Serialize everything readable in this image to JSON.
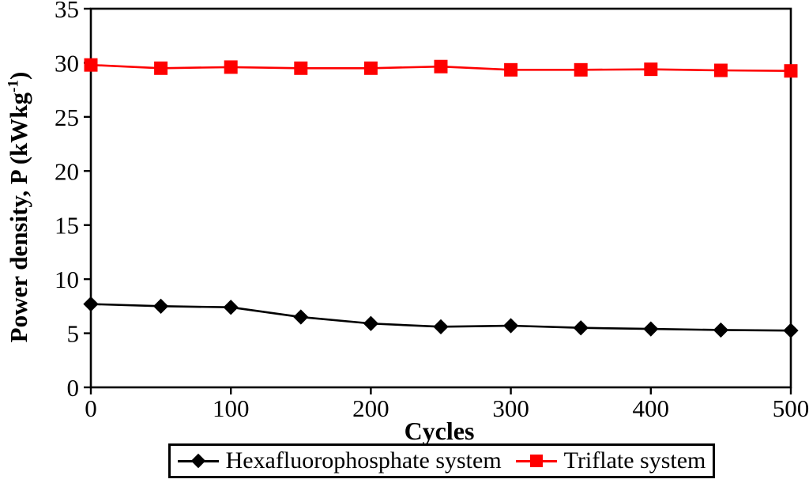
{
  "colors": {
    "series1": "#000000",
    "series2": "#fe0000",
    "axis": "#000000",
    "background": "#ffffff"
  },
  "ylabel_parts": {
    "pre": "Power density, P (kWkg",
    "sup": "-1",
    "post": ")"
  },
  "chart_data": {
    "type": "line",
    "title": "",
    "xlabel": "Cycles",
    "ylabel": "Power density, P (kWkg^-1)",
    "xlim": [
      0,
      500
    ],
    "ylim": [
      0,
      35
    ],
    "x_ticks": [
      0,
      100,
      200,
      300,
      400,
      500
    ],
    "y_ticks": [
      0,
      5,
      10,
      15,
      20,
      25,
      30,
      35
    ],
    "grid": false,
    "legend_position": "bottom",
    "x": [
      0,
      50,
      100,
      150,
      200,
      250,
      300,
      350,
      400,
      450,
      500
    ],
    "series": [
      {
        "name": "Hexafluorophosphate system",
        "marker": "diamond",
        "color": "#000000",
        "values": [
          7.7,
          7.5,
          7.4,
          6.5,
          5.9,
          5.6,
          5.7,
          5.5,
          5.4,
          5.3,
          5.25
        ]
      },
      {
        "name": "Triflate system",
        "marker": "square",
        "color": "#fe0000",
        "values": [
          29.8,
          29.5,
          29.6,
          29.5,
          29.5,
          29.65,
          29.35,
          29.35,
          29.4,
          29.3,
          29.25
        ]
      }
    ]
  }
}
